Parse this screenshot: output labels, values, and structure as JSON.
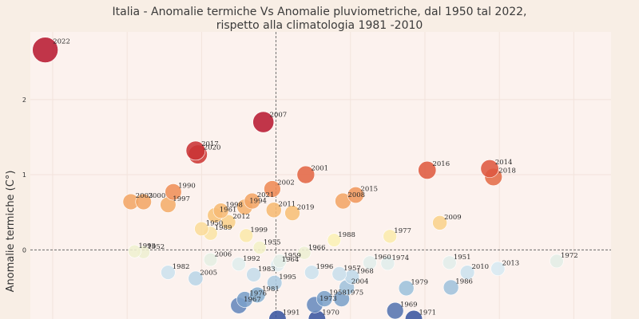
{
  "chart_data": {
    "type": "scatter",
    "title": [
      "Italia - Anomalie termiche Vs Anomalie pluviometriche, dal 1950 tal 2022,",
      "rispetto alla climatologia 1981 -2010"
    ],
    "xlabel": "",
    "ylabel": "Anomalie termiche (C°)",
    "y_ticks": [
      0,
      1,
      2
    ],
    "xlim": [
      -330,
      450
    ],
    "ylim": [
      -0.92,
      2.9
    ],
    "grid": true,
    "reference_lines": {
      "x": 0,
      "y": 0
    },
    "colormap": [
      "#3a55a0",
      "#8fb7d6",
      "#dcecf4",
      "#fbf2b8",
      "#f8c47a",
      "#ee8a55",
      "#d94a3a",
      "#b81a32"
    ],
    "points": [
      {
        "label": "2022",
        "x": -310,
        "y": 2.66
      },
      {
        "label": "2007",
        "x": -17,
        "y": 1.7
      },
      {
        "label": "2017",
        "x": -108,
        "y": 1.32
      },
      {
        "label": "2020",
        "x": -105,
        "y": 1.27
      },
      {
        "label": "2001",
        "x": 40,
        "y": 1.0
      },
      {
        "label": "2016",
        "x": 203,
        "y": 1.06
      },
      {
        "label": "2014",
        "x": 287,
        "y": 1.08
      },
      {
        "label": "2018",
        "x": 292,
        "y": 0.97
      },
      {
        "label": "2002",
        "x": -5,
        "y": 0.81
      },
      {
        "label": "1990",
        "x": -138,
        "y": 0.77
      },
      {
        "label": "2003",
        "x": -195,
        "y": 0.64
      },
      {
        "label": "2000",
        "x": -178,
        "y": 0.64
      },
      {
        "label": "1997",
        "x": -145,
        "y": 0.6
      },
      {
        "label": "2021",
        "x": -32,
        "y": 0.65
      },
      {
        "label": "1994",
        "x": -42,
        "y": 0.57
      },
      {
        "label": "1998",
        "x": -74,
        "y": 0.52
      },
      {
        "label": "1961",
        "x": -82,
        "y": 0.46
      },
      {
        "label": "2011",
        "x": -3,
        "y": 0.53
      },
      {
        "label": "2019",
        "x": 22,
        "y": 0.49
      },
      {
        "label": "2015",
        "x": 107,
        "y": 0.73
      },
      {
        "label": "2008",
        "x": 90,
        "y": 0.65
      },
      {
        "label": "2009",
        "x": 220,
        "y": 0.36
      },
      {
        "label": "1950",
        "x": -100,
        "y": 0.28
      },
      {
        "label": "2012",
        "x": -64,
        "y": 0.37
      },
      {
        "label": "1989",
        "x": -88,
        "y": 0.22
      },
      {
        "label": "1999",
        "x": -40,
        "y": 0.19
      },
      {
        "label": "1988",
        "x": 78,
        "y": 0.13
      },
      {
        "label": "1977",
        "x": 153,
        "y": 0.18
      },
      {
        "label": "1993",
        "x": -190,
        "y": -0.02
      },
      {
        "label": "1952",
        "x": -178,
        "y": -0.03
      },
      {
        "label": "1955",
        "x": -22,
        "y": 0.03
      },
      {
        "label": "1966",
        "x": 38,
        "y": -0.04
      },
      {
        "label": "1951",
        "x": 233,
        "y": -0.17
      },
      {
        "label": "1972",
        "x": 377,
        "y": -0.15
      },
      {
        "label": "1982",
        "x": -145,
        "y": -0.3
      },
      {
        "label": "2006",
        "x": -88,
        "y": -0.13
      },
      {
        "label": "1992",
        "x": -50,
        "y": -0.19
      },
      {
        "label": "1959",
        "x": 5,
        "y": -0.15
      },
      {
        "label": "1964",
        "x": 2,
        "y": -0.2
      },
      {
        "label": "1960",
        "x": 126,
        "y": -0.17
      },
      {
        "label": "1974",
        "x": 150,
        "y": -0.18
      },
      {
        "label": "2010",
        "x": 257,
        "y": -0.3
      },
      {
        "label": "2013",
        "x": 298,
        "y": -0.25
      },
      {
        "label": "2005",
        "x": -108,
        "y": -0.38
      },
      {
        "label": "1983",
        "x": -30,
        "y": -0.33
      },
      {
        "label": "1995",
        "x": -2,
        "y": -0.44
      },
      {
        "label": "1996",
        "x": 48,
        "y": -0.3
      },
      {
        "label": "1957",
        "x": 85,
        "y": -0.32
      },
      {
        "label": "1968",
        "x": 102,
        "y": -0.36
      },
      {
        "label": "2004",
        "x": 95,
        "y": -0.5
      },
      {
        "label": "1979",
        "x": 175,
        "y": -0.51
      },
      {
        "label": "1986",
        "x": 235,
        "y": -0.5
      },
      {
        "label": "1981",
        "x": -25,
        "y": -0.6
      },
      {
        "label": "1976",
        "x": -42,
        "y": -0.66
      },
      {
        "label": "1967",
        "x": -50,
        "y": -0.74
      },
      {
        "label": "1958",
        "x": 65,
        "y": -0.65
      },
      {
        "label": "1975",
        "x": 88,
        "y": -0.65
      },
      {
        "label": "1973",
        "x": 52,
        "y": -0.73
      },
      {
        "label": "1969",
        "x": 160,
        "y": -0.81
      },
      {
        "label": "1971",
        "x": 185,
        "y": -0.92
      },
      {
        "label": "1991",
        "x": 2,
        "y": -0.92
      },
      {
        "label": "1970",
        "x": 55,
        "y": -0.92
      }
    ]
  }
}
